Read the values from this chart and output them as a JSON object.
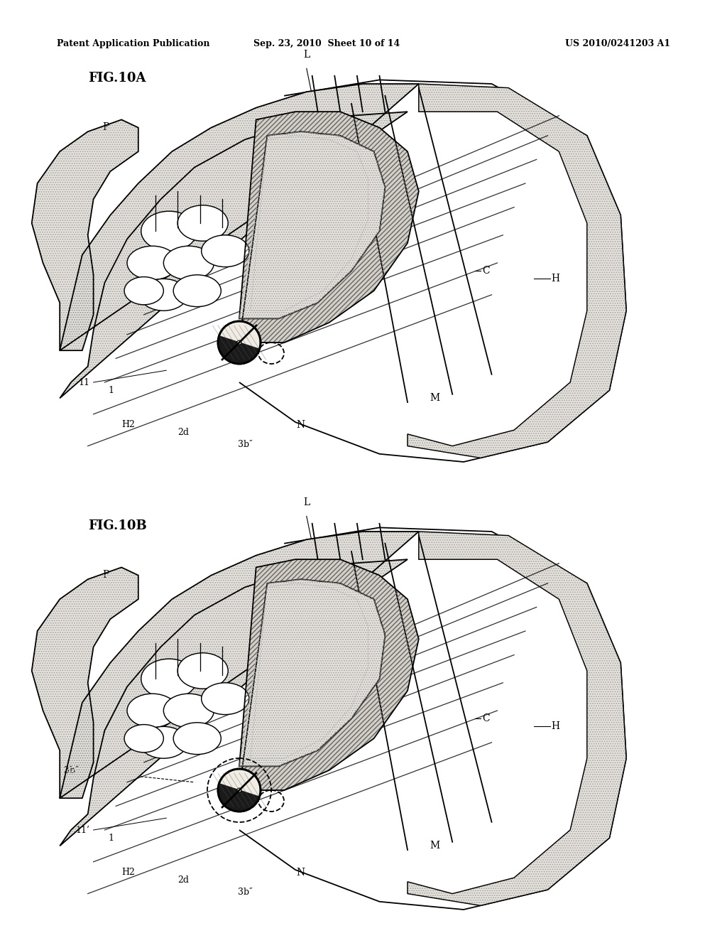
{
  "header_left": "Patent Application Publication",
  "header_mid": "Sep. 23, 2010  Sheet 10 of 14",
  "header_right": "US 2010/0241203 A1",
  "fig_a_label": "FIG.10A",
  "fig_b_label": "FIG.10B",
  "bg_color": "#ffffff",
  "lc": "#000000",
  "stipple_color": "#cccccc",
  "hatch_color": "#999999"
}
